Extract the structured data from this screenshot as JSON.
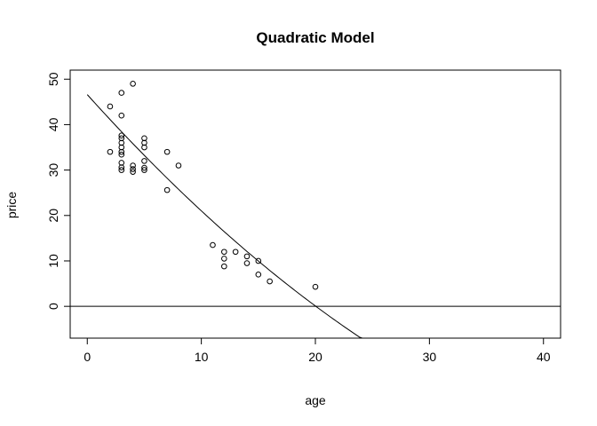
{
  "chart_data": {
    "type": "scatter",
    "title": "Quadratic Model",
    "xlabel": "age",
    "ylabel": "price",
    "xlim": [
      -1.5,
      41.5
    ],
    "ylim": [
      -7,
      52
    ],
    "x_ticks": [
      0,
      10,
      20,
      30,
      40
    ],
    "y_ticks": [
      0,
      10,
      20,
      30,
      40,
      50
    ],
    "grid": false,
    "colors": {
      "points": "#000000",
      "curve": "#000000",
      "axes": "#000000"
    },
    "points": [
      {
        "x": 2,
        "y": 44
      },
      {
        "x": 2,
        "y": 34
      },
      {
        "x": 3,
        "y": 47
      },
      {
        "x": 3,
        "y": 42
      },
      {
        "x": 3,
        "y": 37.6
      },
      {
        "x": 3,
        "y": 37
      },
      {
        "x": 3,
        "y": 36
      },
      {
        "x": 3,
        "y": 35
      },
      {
        "x": 3,
        "y": 34
      },
      {
        "x": 3,
        "y": 33.4
      },
      {
        "x": 3,
        "y": 31.6
      },
      {
        "x": 3,
        "y": 30.6
      },
      {
        "x": 3,
        "y": 30
      },
      {
        "x": 4,
        "y": 49
      },
      {
        "x": 4,
        "y": 31
      },
      {
        "x": 4,
        "y": 30.2
      },
      {
        "x": 4,
        "y": 29.6
      },
      {
        "x": 5,
        "y": 37
      },
      {
        "x": 5,
        "y": 36
      },
      {
        "x": 5,
        "y": 35
      },
      {
        "x": 5,
        "y": 32
      },
      {
        "x": 5,
        "y": 30.5
      },
      {
        "x": 5,
        "y": 30
      },
      {
        "x": 7,
        "y": 34
      },
      {
        "x": 7,
        "y": 25.6
      },
      {
        "x": 8,
        "y": 31
      },
      {
        "x": 11,
        "y": 13.5
      },
      {
        "x": 12,
        "y": 12
      },
      {
        "x": 12,
        "y": 10.5
      },
      {
        "x": 12,
        "y": 8.8
      },
      {
        "x": 13,
        "y": 12
      },
      {
        "x": 14,
        "y": 11
      },
      {
        "x": 14,
        "y": 9.5
      },
      {
        "x": 15,
        "y": 10
      },
      {
        "x": 15,
        "y": 7
      },
      {
        "x": 16,
        "y": 5.5
      },
      {
        "x": 20,
        "y": 4.3
      }
    ],
    "curve": {
      "type": "quadratic",
      "intercept": 46.6,
      "linear": -2.79,
      "quadratic": 0.0232,
      "x_range": [
        0,
        27.3
      ]
    },
    "reference_line": {
      "y": 0
    }
  }
}
